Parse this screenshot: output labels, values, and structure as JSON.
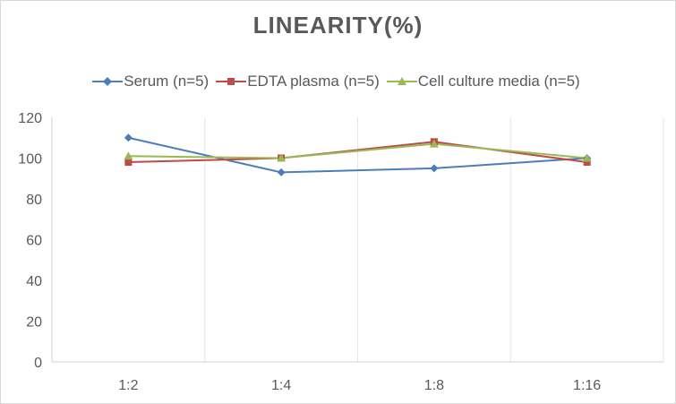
{
  "chart_data": {
    "type": "line",
    "title": "LINEARITY(%)",
    "xlabel": "",
    "ylabel": "",
    "categories": [
      "1:2",
      "1:4",
      "1:8",
      "1:16"
    ],
    "ylim": [
      0,
      120
    ],
    "yticks": [
      0,
      20,
      40,
      60,
      80,
      100,
      120
    ],
    "grid": "vertical",
    "legend_position": "top",
    "series": [
      {
        "name": "Serum (n=5)",
        "values": [
          110,
          93,
          95,
          100
        ],
        "color": "#4a7ebb",
        "marker": "diamond"
      },
      {
        "name": "EDTA plasma (n=5)",
        "values": [
          98,
          100,
          108,
          98
        ],
        "color": "#be4b48",
        "marker": "square"
      },
      {
        "name": "Cell culture media (n=5)",
        "values": [
          101,
          100,
          107,
          100
        ],
        "color": "#98b954",
        "marker": "triangle"
      }
    ]
  }
}
